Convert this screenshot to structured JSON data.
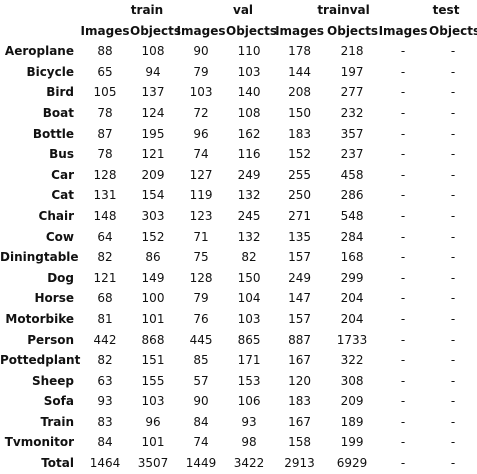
{
  "splits": [
    "train",
    "val",
    "trainval",
    "test"
  ],
  "columns": [
    "Images",
    "Objects"
  ],
  "rows": [
    {
      "label": "Aeroplane",
      "values": [
        "88",
        "108",
        "90",
        "110",
        "178",
        "218",
        "-",
        "-"
      ]
    },
    {
      "label": "Bicycle",
      "values": [
        "65",
        "94",
        "79",
        "103",
        "144",
        "197",
        "-",
        "-"
      ]
    },
    {
      "label": "Bird",
      "values": [
        "105",
        "137",
        "103",
        "140",
        "208",
        "277",
        "-",
        "-"
      ]
    },
    {
      "label": "Boat",
      "values": [
        "78",
        "124",
        "72",
        "108",
        "150",
        "232",
        "-",
        "-"
      ]
    },
    {
      "label": "Bottle",
      "values": [
        "87",
        "195",
        "96",
        "162",
        "183",
        "357",
        "-",
        "-"
      ]
    },
    {
      "label": "Bus",
      "values": [
        "78",
        "121",
        "74",
        "116",
        "152",
        "237",
        "-",
        "-"
      ]
    },
    {
      "label": "Car",
      "values": [
        "128",
        "209",
        "127",
        "249",
        "255",
        "458",
        "-",
        "-"
      ]
    },
    {
      "label": "Cat",
      "values": [
        "131",
        "154",
        "119",
        "132",
        "250",
        "286",
        "-",
        "-"
      ]
    },
    {
      "label": "Chair",
      "values": [
        "148",
        "303",
        "123",
        "245",
        "271",
        "548",
        "-",
        "-"
      ]
    },
    {
      "label": "Cow",
      "values": [
        "64",
        "152",
        "71",
        "132",
        "135",
        "284",
        "-",
        "-"
      ]
    },
    {
      "label": "Diningtable",
      "values": [
        "82",
        "86",
        "75",
        "82",
        "157",
        "168",
        "-",
        "-"
      ]
    },
    {
      "label": "Dog",
      "values": [
        "121",
        "149",
        "128",
        "150",
        "249",
        "299",
        "-",
        "-"
      ]
    },
    {
      "label": "Horse",
      "values": [
        "68",
        "100",
        "79",
        "104",
        "147",
        "204",
        "-",
        "-"
      ]
    },
    {
      "label": "Motorbike",
      "values": [
        "81",
        "101",
        "76",
        "103",
        "157",
        "204",
        "-",
        "-"
      ]
    },
    {
      "label": "Person",
      "values": [
        "442",
        "868",
        "445",
        "865",
        "887",
        "1733",
        "-",
        "-"
      ]
    },
    {
      "label": "Pottedplant",
      "values": [
        "82",
        "151",
        "85",
        "171",
        "167",
        "322",
        "-",
        "-"
      ]
    },
    {
      "label": "Sheep",
      "values": [
        "63",
        "155",
        "57",
        "153",
        "120",
        "308",
        "-",
        "-"
      ]
    },
    {
      "label": "Sofa",
      "values": [
        "93",
        "103",
        "90",
        "106",
        "183",
        "209",
        "-",
        "-"
      ]
    },
    {
      "label": "Train",
      "values": [
        "83",
        "96",
        "84",
        "93",
        "167",
        "189",
        "-",
        "-"
      ]
    },
    {
      "label": "Tvmonitor",
      "values": [
        "84",
        "101",
        "74",
        "98",
        "158",
        "199",
        "-",
        "-"
      ]
    },
    {
      "label": "Total",
      "values": [
        "1464",
        "3507",
        "1449",
        "3422",
        "2913",
        "6929",
        "-",
        "-"
      ]
    }
  ]
}
